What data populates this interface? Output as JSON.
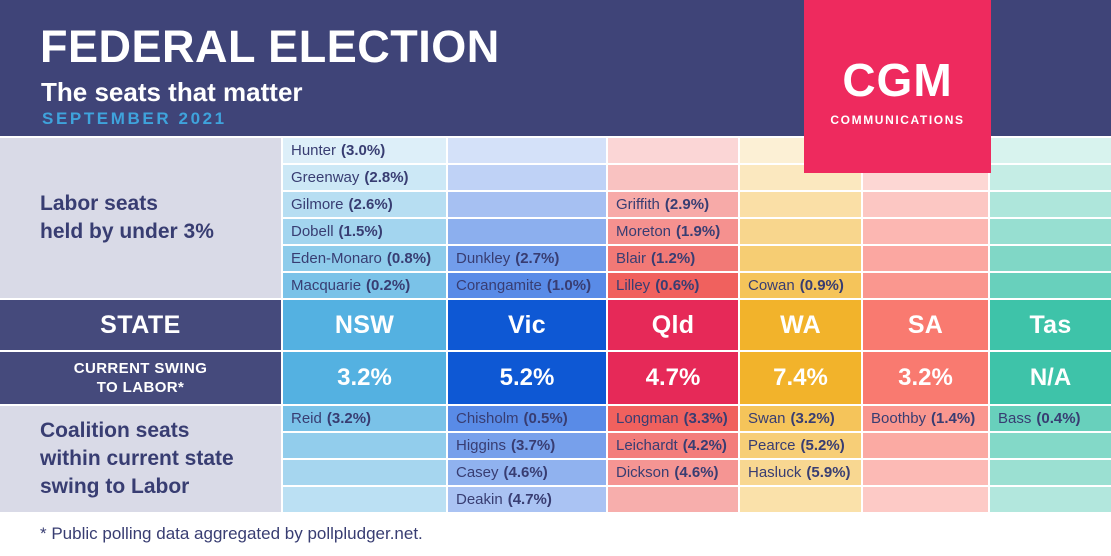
{
  "chart_data": {
    "type": "table",
    "title": "FEDERAL ELECTION",
    "subtitle": "The seats that matter",
    "date": "SEPTEMBER 2021",
    "logo": {
      "name": "CGM",
      "tagline": "COMMUNICATIONS",
      "color": "#ee2a5e"
    },
    "footnote": "* Public polling data aggregated by pollpludger.net.",
    "row_group_labels": {
      "labor": "Labor seats\nheld by under 3%",
      "state": "STATE",
      "swing": "CURRENT SWING\nTO LABOR*",
      "coalition": "Coalition seats\nwithin current state\nswing to Labor"
    },
    "labor_rows": 6,
    "coalition_rows": 4,
    "columns": [
      {
        "id": "nsw",
        "state": "NSW",
        "swing_to_labor": "3.2%",
        "header_color": "#54b1e1",
        "cell_color": "#54b1e1",
        "labor_seats": [
          {
            "seat": "Hunter",
            "margin_pct": 3.0
          },
          {
            "seat": "Greenway",
            "margin_pct": 2.8
          },
          {
            "seat": "Gilmore",
            "margin_pct": 2.6
          },
          {
            "seat": "Dobell",
            "margin_pct": 1.5
          },
          {
            "seat": "Eden-Monaro",
            "margin_pct": 0.8
          },
          {
            "seat": "Macquarie",
            "margin_pct": 0.2
          }
        ],
        "coalition_seats": [
          {
            "seat": "Reid",
            "margin_pct": 3.2
          }
        ]
      },
      {
        "id": "vic",
        "state": "Vic",
        "swing_to_labor": "5.2%",
        "header_color": "#0e58d4",
        "cell_color": "#2a6ae0",
        "labor_seats": [
          {
            "seat": "Dunkley",
            "margin_pct": 2.7
          },
          {
            "seat": "Corangamite",
            "margin_pct": 1.0
          }
        ],
        "coalition_seats": [
          {
            "seat": "Chisholm",
            "margin_pct": 0.5
          },
          {
            "seat": "Higgins",
            "margin_pct": 3.7
          },
          {
            "seat": "Casey",
            "margin_pct": 4.6
          },
          {
            "seat": "Deakin",
            "margin_pct": 4.7
          }
        ]
      },
      {
        "id": "qld",
        "state": "Qld",
        "swing_to_labor": "4.7%",
        "header_color": "#e62958",
        "cell_color": "#ec3430",
        "labor_seats": [
          {
            "seat": "Griffith",
            "margin_pct": 2.9
          },
          {
            "seat": "Moreton",
            "margin_pct": 1.9
          },
          {
            "seat": "Blair",
            "margin_pct": 1.2
          },
          {
            "seat": "Lilley",
            "margin_pct": 0.6
          }
        ],
        "coalition_seats": [
          {
            "seat": "Longman",
            "margin_pct": 3.3
          },
          {
            "seat": "Leichardt",
            "margin_pct": 4.2
          },
          {
            "seat": "Dickson",
            "margin_pct": 4.6
          }
        ]
      },
      {
        "id": "wa",
        "state": "WA",
        "swing_to_labor": "7.4%",
        "header_color": "#f2b32b",
        "cell_color": "#f2b32b",
        "labor_seats": [
          {
            "seat": "Cowan",
            "margin_pct": 0.9
          }
        ],
        "coalition_seats": [
          {
            "seat": "Swan",
            "margin_pct": 3.2
          },
          {
            "seat": "Pearce",
            "margin_pct": 5.2
          },
          {
            "seat": "Hasluck",
            "margin_pct": 5.9
          }
        ]
      },
      {
        "id": "sa",
        "state": "SA",
        "swing_to_labor": "3.2%",
        "header_color": "#f97a70",
        "cell_color": "#f97a70",
        "labor_seats": [],
        "coalition_seats": [
          {
            "seat": "Boothby",
            "margin_pct": 1.4
          }
        ]
      },
      {
        "id": "tas",
        "state": "Tas",
        "swing_to_labor": "N/A",
        "header_color": "#3ec3a9",
        "cell_color": "#3ec3a9",
        "labor_seats": [],
        "coalition_seats": [
          {
            "seat": "Bass",
            "margin_pct": 0.4
          }
        ]
      }
    ],
    "shading": {
      "labor_white_mix": [
        0.8,
        0.7,
        0.58,
        0.46,
        0.34,
        0.22
      ],
      "coalition_white_mix": [
        0.22,
        0.36,
        0.48,
        0.6
      ]
    },
    "colors": {
      "header_bg": "#3f4478",
      "label_cell_bg": "#454a7c",
      "section_label_bg": "#d9dae7",
      "text_navy": "#383d72",
      "date_blue": "#3fa3dc"
    }
  }
}
